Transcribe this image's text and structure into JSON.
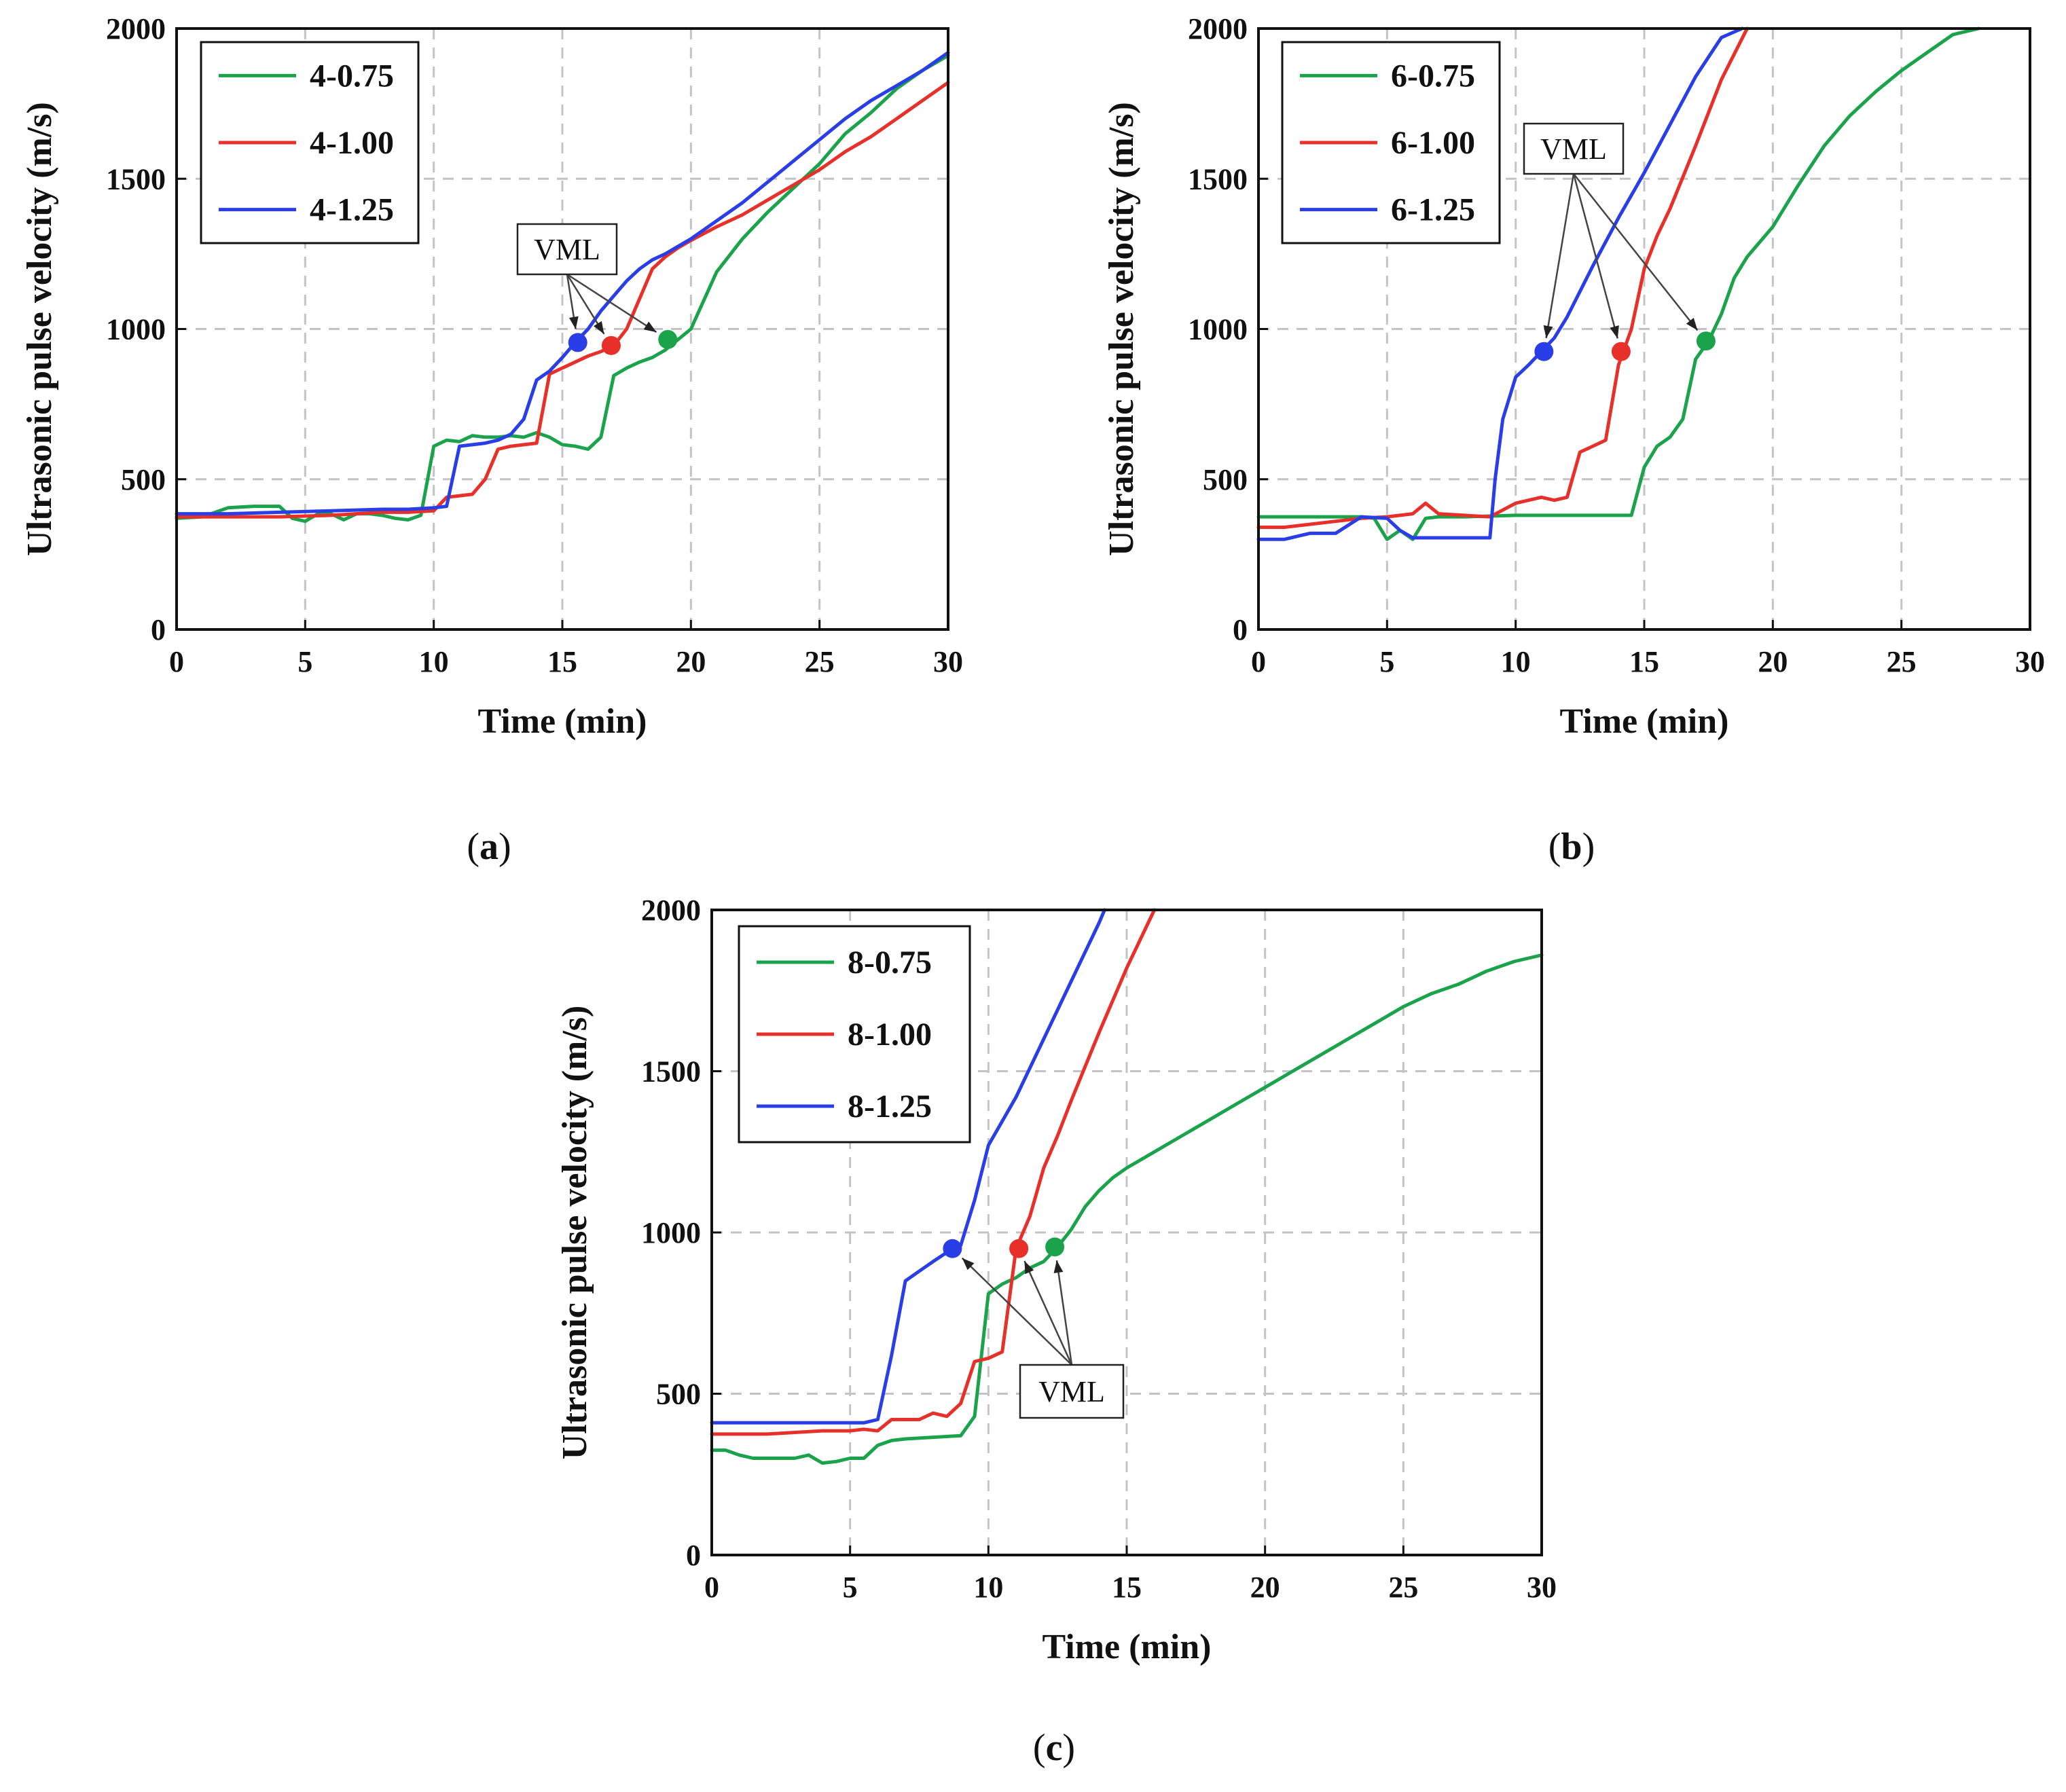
{
  "chart_data": [
    {
      "type": "line",
      "panel": "a",
      "caption": "(a)",
      "xlabel": "Time (min)",
      "ylabel": "Ultrasonic pulse velocity (m/s)",
      "xlim": [
        0,
        30
      ],
      "ylim": [
        0,
        2000
      ],
      "xticks": [
        0,
        5,
        10,
        15,
        20,
        25,
        30
      ],
      "yticks": [
        0,
        500,
        1000,
        1500,
        2000
      ],
      "grid": true,
      "legend_position": "top-left",
      "annotation": {
        "text": "VML",
        "points": [
          [
            15.6,
            955
          ],
          [
            16.9,
            945
          ],
          [
            19.1,
            965
          ]
        ]
      },
      "series": [
        {
          "name": "4-0.75",
          "color": "#1aa34a",
          "x": [
            0,
            1,
            2,
            3,
            4,
            4.5,
            5,
            5.5,
            6,
            6.5,
            7,
            7.5,
            8,
            8.5,
            9,
            9.5,
            10,
            10.5,
            11,
            11.5,
            12,
            12.5,
            13,
            13.5,
            14,
            14.5,
            15,
            15.5,
            16,
            16.5,
            17,
            17.5,
            18,
            18.5,
            19,
            19.5,
            20,
            21,
            22,
            23,
            24,
            25,
            26,
            27,
            28,
            29,
            30
          ],
          "values": [
            370,
            375,
            405,
            410,
            410,
            370,
            360,
            385,
            385,
            365,
            385,
            385,
            380,
            370,
            365,
            380,
            610,
            630,
            625,
            645,
            640,
            640,
            645,
            640,
            655,
            640,
            615,
            610,
            600,
            640,
            845,
            870,
            890,
            905,
            930,
            965,
            1000,
            1190,
            1300,
            1390,
            1470,
            1550,
            1650,
            1720,
            1800,
            1860,
            1910
          ],
          "vml": [
            19.1,
            965
          ]
        },
        {
          "name": "4-1.00",
          "color": "#e8302a",
          "x": [
            0,
            2,
            4,
            6,
            8,
            9,
            10,
            10.5,
            11,
            11.5,
            12,
            12.5,
            13,
            13.5,
            14,
            14.5,
            15,
            15.5,
            16,
            16.5,
            17,
            17.5,
            18,
            18.5,
            19,
            19.5,
            20,
            21,
            22,
            23,
            24,
            25,
            26,
            27,
            28,
            29,
            30
          ],
          "values": [
            375,
            375,
            375,
            380,
            390,
            390,
            395,
            440,
            445,
            450,
            500,
            600,
            610,
            615,
            620,
            850,
            870,
            890,
            910,
            925,
            945,
            1000,
            1100,
            1200,
            1240,
            1270,
            1295,
            1340,
            1380,
            1430,
            1480,
            1530,
            1590,
            1640,
            1700,
            1760,
            1820
          ],
          "vml": [
            16.9,
            945
          ]
        },
        {
          "name": "4-1.25",
          "color": "#2a3ee8",
          "x": [
            0,
            2,
            4,
            6,
            8,
            9,
            10,
            10.5,
            11,
            11.5,
            12,
            12.5,
            13,
            13.5,
            14,
            14.5,
            15,
            15.5,
            16,
            16.5,
            17,
            17.5,
            18,
            18.5,
            19,
            19.5,
            20,
            21,
            22,
            23,
            24,
            25,
            26,
            27,
            28,
            29,
            30
          ],
          "values": [
            385,
            385,
            390,
            395,
            400,
            400,
            405,
            410,
            610,
            615,
            620,
            630,
            650,
            700,
            830,
            860,
            905,
            955,
            1000,
            1060,
            1110,
            1160,
            1200,
            1230,
            1250,
            1275,
            1300,
            1360,
            1420,
            1490,
            1560,
            1630,
            1700,
            1760,
            1810,
            1860,
            1920
          ],
          "vml": [
            15.6,
            955
          ]
        }
      ]
    },
    {
      "type": "line",
      "panel": "b",
      "caption": "(b)",
      "xlabel": "Time (min)",
      "ylabel": "Ultrasonic pulse velocity (m/s)",
      "xlim": [
        0,
        30
      ],
      "ylim": [
        0,
        2000
      ],
      "xticks": [
        0,
        5,
        10,
        15,
        20,
        25,
        30
      ],
      "yticks": [
        0,
        500,
        1000,
        1500,
        2000
      ],
      "grid": true,
      "legend_position": "top-left",
      "annotation": {
        "text": "VML",
        "points": [
          [
            11.1,
            925
          ],
          [
            14.1,
            925
          ],
          [
            17.4,
            960
          ]
        ]
      },
      "series": [
        {
          "name": "6-0.75",
          "color": "#1aa34a",
          "x": [
            0,
            2,
            4,
            4.5,
            5,
            5.5,
            6,
            6.5,
            7,
            8,
            10,
            12,
            13,
            14,
            14.5,
            15,
            15.5,
            16,
            16.5,
            17,
            17.5,
            18,
            18.5,
            19,
            20,
            21,
            22,
            23,
            24,
            25,
            26,
            27,
            28
          ],
          "values": [
            375,
            375,
            375,
            370,
            300,
            330,
            300,
            370,
            375,
            375,
            380,
            380,
            380,
            380,
            380,
            540,
            610,
            640,
            700,
            900,
            960,
            1050,
            1170,
            1240,
            1340,
            1480,
            1610,
            1710,
            1790,
            1860,
            1920,
            1980,
            2000
          ],
          "vml": [
            17.4,
            960
          ]
        },
        {
          "name": "6-1.00",
          "color": "#e8302a",
          "x": [
            0,
            1,
            2,
            3,
            4,
            5,
            5.5,
            6,
            6.5,
            7,
            8,
            9,
            10,
            10.5,
            11,
            11.5,
            12,
            12.5,
            13,
            13.5,
            14,
            14.5,
            15,
            15.5,
            16,
            17,
            18,
            19
          ],
          "values": [
            340,
            340,
            350,
            360,
            370,
            375,
            380,
            385,
            420,
            385,
            380,
            375,
            420,
            430,
            440,
            430,
            440,
            590,
            610,
            630,
            880,
            1000,
            1200,
            1310,
            1400,
            1610,
            1830,
            2000
          ],
          "vml": [
            14.1,
            925
          ]
        },
        {
          "name": "6-1.25",
          "color": "#2a3ee8",
          "x": [
            0,
            1,
            2,
            3,
            4,
            5,
            5.5,
            6,
            7,
            8,
            9,
            9.2,
            9.5,
            10,
            10.5,
            11,
            11.5,
            12,
            13,
            14,
            15,
            16,
            17,
            18,
            18.8
          ],
          "values": [
            300,
            300,
            320,
            320,
            375,
            370,
            330,
            305,
            305,
            305,
            305,
            500,
            700,
            840,
            880,
            925,
            970,
            1040,
            1210,
            1370,
            1520,
            1680,
            1840,
            1970,
            2000
          ],
          "vml": [
            11.1,
            925
          ]
        }
      ]
    },
    {
      "type": "line",
      "panel": "c",
      "caption": "(c)",
      "xlabel": "Time (min)",
      "ylabel": "Ultrasonic pulse velocity (m/s)",
      "xlim": [
        0,
        30
      ],
      "ylim": [
        0,
        2000
      ],
      "xticks": [
        0,
        5,
        10,
        15,
        20,
        25,
        30
      ],
      "yticks": [
        0,
        500,
        1000,
        1500,
        2000
      ],
      "grid": true,
      "legend_position": "top-left",
      "annotation": {
        "text": "VML",
        "points": [
          [
            8.7,
            950
          ],
          [
            11.1,
            950
          ],
          [
            12.4,
            955
          ]
        ]
      },
      "series": [
        {
          "name": "8-0.75",
          "color": "#1aa34a",
          "x": [
            0,
            0.5,
            1,
            1.5,
            2,
            3,
            3.5,
            4,
            4.5,
            5,
            5.5,
            6,
            6.5,
            7,
            8,
            9,
            9.5,
            10,
            10.5,
            11,
            11.5,
            12,
            12.5,
            13,
            13.5,
            14,
            14.5,
            15,
            16,
            17,
            18,
            19,
            20,
            21,
            22,
            23,
            24,
            25,
            26,
            27,
            28,
            29,
            30
          ],
          "values": [
            325,
            325,
            310,
            300,
            300,
            300,
            310,
            285,
            290,
            300,
            300,
            340,
            355,
            360,
            365,
            370,
            430,
            810,
            840,
            860,
            890,
            910,
            955,
            1010,
            1080,
            1130,
            1170,
            1200,
            1250,
            1300,
            1350,
            1400,
            1450,
            1500,
            1550,
            1600,
            1650,
            1700,
            1740,
            1770,
            1810,
            1840,
            1860
          ],
          "vml": [
            12.4,
            955
          ]
        },
        {
          "name": "8-1.00",
          "color": "#e8302a",
          "x": [
            0,
            1,
            2,
            3,
            4,
            5,
            5.5,
            6,
            6.5,
            7,
            7.5,
            8,
            8.5,
            9,
            9.5,
            10,
            10.5,
            11,
            11.5,
            12,
            12.5,
            13,
            14,
            15,
            16
          ],
          "values": [
            375,
            375,
            375,
            380,
            385,
            385,
            390,
            385,
            420,
            420,
            420,
            440,
            430,
            470,
            600,
            610,
            630,
            950,
            1050,
            1200,
            1300,
            1410,
            1620,
            1820,
            2000
          ],
          "vml": [
            11.1,
            950
          ]
        },
        {
          "name": "8-1.25",
          "color": "#2a3ee8",
          "x": [
            0,
            1,
            2,
            3,
            4,
            5,
            5.5,
            6,
            6.5,
            7,
            7.5,
            8,
            8.7,
            9,
            9.5,
            10,
            11,
            12,
            13,
            14,
            14.2
          ],
          "values": [
            410,
            410,
            410,
            410,
            410,
            410,
            410,
            420,
            620,
            850,
            880,
            910,
            950,
            960,
            1100,
            1270,
            1420,
            1600,
            1780,
            1960,
            2000
          ],
          "vml": [
            8.7,
            950
          ]
        }
      ]
    }
  ]
}
